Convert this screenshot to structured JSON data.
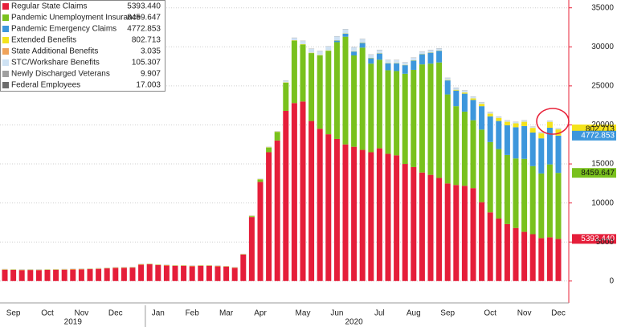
{
  "chart_data": {
    "type": "stacked_bar",
    "categories": [
      null,
      "Sep",
      null,
      null,
      null,
      "Oct",
      null,
      null,
      null,
      "Nov",
      null,
      null,
      null,
      "Dec",
      null,
      null,
      null,
      null,
      "Jan",
      null,
      null,
      null,
      "Feb",
      null,
      null,
      null,
      "Mar",
      null,
      null,
      null,
      "Apr",
      null,
      null,
      null,
      null,
      "May",
      null,
      null,
      null,
      "Jun",
      null,
      null,
      null,
      null,
      "Jul",
      null,
      null,
      null,
      "Aug",
      null,
      null,
      null,
      "Sep",
      null,
      null,
      null,
      null,
      "Oct",
      null,
      null,
      null,
      "Nov",
      null,
      null,
      null,
      "Dec"
    ],
    "x_groups": [
      "2019",
      "2020"
    ],
    "ylim": [
      -2800,
      36000
    ],
    "yticks": [
      0,
      5000,
      10000,
      15000,
      20000,
      25000,
      30000,
      35000
    ],
    "grid": true,
    "legend": "upper left",
    "series": [
      {
        "name": "Regular State Claims",
        "color": "#e51e3a",
        "values": [
          1450,
          1420,
          1400,
          1410,
          1400,
          1420,
          1440,
          1450,
          1480,
          1500,
          1520,
          1560,
          1620,
          1680,
          1700,
          1720,
          2100,
          2150,
          2050,
          2000,
          1950,
          1950,
          1900,
          1950,
          1950,
          1900,
          1850,
          1700,
          3400,
          8200,
          12700,
          16500,
          18000,
          21800,
          22800,
          23000,
          20500,
          19500,
          18800,
          18200,
          17500,
          17200,
          16800,
          16500,
          17000,
          16300,
          16100,
          15000,
          14600,
          13900,
          13600,
          13200,
          12500,
          12300,
          12200,
          11900,
          10100,
          8800,
          8000,
          7300,
          6800,
          6300,
          6000,
          5500,
          5600,
          5393.44
        ],
        "value_labels": [
          null,
          null,
          null,
          null,
          null,
          null,
          null,
          null,
          null,
          null,
          null,
          null,
          null,
          null,
          null,
          null,
          null,
          null,
          null,
          null,
          null,
          null,
          null,
          null,
          null,
          null,
          null,
          null,
          null,
          null,
          null,
          null,
          null,
          null,
          null,
          null,
          null,
          null,
          null,
          null,
          null,
          null,
          null,
          null,
          null,
          null,
          null,
          null,
          null,
          null,
          null,
          null,
          null,
          null,
          null,
          null,
          null,
          null,
          null,
          null,
          null,
          null,
          null,
          null,
          null,
          "5393.440"
        ]
      },
      {
        "name": "Pandemic Unemployment Insurance",
        "color": "#79c11d",
        "values": [
          0,
          0,
          0,
          0,
          0,
          0,
          0,
          0,
          0,
          0,
          0,
          0,
          0,
          0,
          0,
          0,
          0,
          0,
          0,
          0,
          0,
          0,
          0,
          0,
          0,
          0,
          0,
          0,
          0,
          100,
          300,
          600,
          1100,
          3600,
          8000,
          7300,
          8700,
          9400,
          10700,
          12400,
          13800,
          11700,
          13100,
          11350,
          11350,
          10700,
          10800,
          11550,
          12450,
          13850,
          14250,
          14800,
          11400,
          10100,
          9500,
          8700,
          9300,
          9000,
          8900,
          8850,
          8900,
          9350,
          8720,
          8280,
          9340,
          8459.647
        ]
      },
      {
        "name": "Pandemic Emergency Claims",
        "color": "#3d97dc",
        "values": [
          0,
          0,
          0,
          0,
          0,
          0,
          0,
          0,
          0,
          0,
          0,
          0,
          0,
          0,
          0,
          0,
          0,
          0,
          0,
          0,
          0,
          0,
          0,
          0,
          0,
          0,
          0,
          0,
          0,
          0,
          0,
          0,
          0,
          0,
          0,
          0,
          0,
          0,
          0,
          200,
          400,
          500,
          600,
          700,
          800,
          900,
          1000,
          1100,
          1200,
          1300,
          1400,
          1500,
          1800,
          2000,
          2300,
          2600,
          3000,
          3300,
          3600,
          3800,
          4000,
          4200,
          4300,
          4500,
          4700,
          4772.853
        ]
      },
      {
        "name": "Extended Benefits",
        "color": "#f4e31c",
        "values": [
          40,
          40,
          40,
          40,
          40,
          40,
          40,
          40,
          40,
          40,
          40,
          40,
          40,
          40,
          40,
          40,
          40,
          40,
          40,
          40,
          40,
          40,
          40,
          40,
          40,
          40,
          40,
          40,
          40,
          40,
          40,
          40,
          40,
          40,
          40,
          40,
          40,
          40,
          40,
          40,
          40,
          40,
          40,
          40,
          40,
          40,
          40,
          40,
          40,
          40,
          40,
          40,
          50,
          100,
          150,
          200,
          300,
          350,
          400,
          450,
          500,
          550,
          600,
          650,
          750,
          802.713
        ]
      },
      {
        "name": "State Additional Benefits",
        "color": "#f0a35a",
        "values": [
          3,
          3,
          3,
          3,
          3,
          3,
          3,
          3,
          3,
          3,
          3,
          3,
          3,
          3,
          3,
          3,
          3,
          3,
          3,
          3,
          3,
          3,
          3,
          3,
          3,
          3,
          3,
          3,
          3,
          3,
          3,
          3,
          3,
          3,
          3,
          3,
          3,
          3,
          3,
          3,
          3,
          3,
          3,
          3,
          3,
          3,
          3,
          3,
          3,
          3,
          3,
          3,
          3,
          3,
          3,
          3,
          3,
          3,
          3,
          3,
          3,
          3,
          3,
          3,
          3,
          3.035
        ]
      },
      {
        "name": "STC/Workshare Benefits",
        "color": "#cfe2f3",
        "values": [
          10,
          10,
          10,
          10,
          10,
          10,
          10,
          10,
          10,
          10,
          10,
          10,
          10,
          10,
          10,
          10,
          10,
          10,
          10,
          10,
          10,
          10,
          10,
          10,
          10,
          10,
          10,
          10,
          10,
          10,
          10,
          10,
          10,
          200,
          300,
          400,
          500,
          500,
          500,
          500,
          500,
          500,
          450,
          400,
          400,
          350,
          350,
          300,
          300,
          300,
          300,
          250,
          250,
          250,
          250,
          200,
          200,
          200,
          150,
          150,
          150,
          150,
          130,
          120,
          110,
          105.307
        ]
      },
      {
        "name": "Newly Discharged Veterans",
        "color": "#a0a0a0",
        "values": [
          10,
          10,
          10,
          10,
          10,
          10,
          10,
          10,
          10,
          10,
          10,
          10,
          10,
          10,
          10,
          10,
          10,
          10,
          10,
          10,
          10,
          10,
          10,
          10,
          10,
          10,
          10,
          10,
          10,
          10,
          10,
          10,
          10,
          10,
          10,
          10,
          10,
          10,
          10,
          10,
          10,
          10,
          10,
          10,
          10,
          10,
          10,
          10,
          10,
          10,
          10,
          10,
          10,
          10,
          10,
          10,
          10,
          10,
          10,
          10,
          10,
          10,
          10,
          10,
          10,
          9.907
        ]
      },
      {
        "name": "Federal Employees",
        "color": "#6e6e6e",
        "values": [
          20,
          20,
          20,
          20,
          20,
          20,
          20,
          20,
          20,
          20,
          20,
          20,
          20,
          20,
          20,
          20,
          20,
          20,
          20,
          20,
          20,
          20,
          20,
          20,
          20,
          20,
          20,
          20,
          20,
          20,
          20,
          20,
          20,
          20,
          20,
          20,
          20,
          20,
          20,
          20,
          20,
          20,
          20,
          20,
          20,
          20,
          20,
          20,
          20,
          20,
          20,
          20,
          20,
          20,
          20,
          20,
          20,
          20,
          20,
          20,
          20,
          20,
          20,
          20,
          20,
          17.003
        ]
      }
    ]
  }
}
